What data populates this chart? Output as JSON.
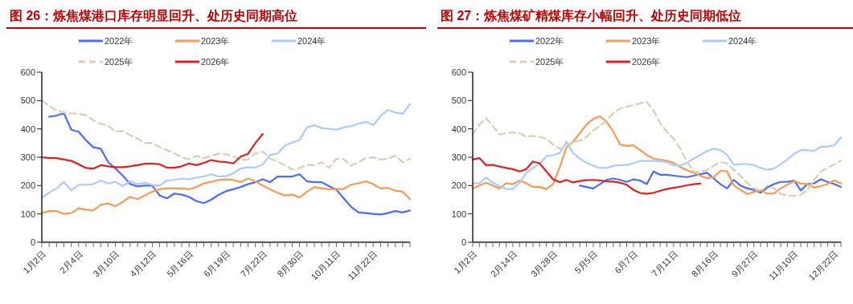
{
  "chart_data": [
    {
      "type": "line",
      "title": "图 26：炼焦煤港口库存明显回升、处历史同期高位",
      "categories": [
        "1月2日",
        null,
        null,
        null,
        null,
        "2月4日",
        null,
        null,
        null,
        null,
        "3月10日",
        null,
        null,
        null,
        null,
        "4月12日",
        null,
        null,
        null,
        null,
        "5月16日",
        null,
        null,
        null,
        null,
        "6月19日",
        null,
        null,
        null,
        null,
        "7月22日",
        null,
        null,
        null,
        null,
        "8月30日",
        null,
        null,
        null,
        null,
        "10月11日",
        null,
        null,
        null,
        null,
        "11月22日",
        null,
        null,
        null,
        null,
        null
      ],
      "series": [
        {
          "name": "2022年",
          "color": "#4a6cf7",
          "values": [
            null,
            443,
            447,
            455,
            397,
            390,
            360,
            335,
            330,
            283,
            260,
            235,
            205,
            197,
            200,
            200,
            165,
            155,
            172,
            168,
            160,
            145,
            138,
            150,
            167,
            180,
            187,
            195,
            205,
            212,
            222,
            212,
            232,
            232,
            232,
            240,
            215,
            212,
            212,
            198,
            185,
            155,
            125,
            105,
            103,
            100,
            98,
            103,
            110,
            105,
            112
          ]
        },
        {
          "name": "2023年",
          "color": "#f79a55",
          "values": [
            103,
            110,
            110,
            100,
            103,
            120,
            115,
            112,
            132,
            137,
            127,
            143,
            160,
            152,
            165,
            178,
            187,
            190,
            190,
            190,
            187,
            195,
            208,
            213,
            220,
            222,
            220,
            212,
            225,
            215,
            200,
            187,
            175,
            165,
            168,
            158,
            178,
            195,
            190,
            187,
            188,
            188,
            203,
            208,
            215,
            205,
            190,
            192,
            182,
            178,
            152
          ]
        },
        {
          "name": "2024年",
          "color": "#a9cbff",
          "values": [
            157,
            175,
            190,
            213,
            183,
            203,
            203,
            205,
            218,
            207,
            213,
            198,
            215,
            205,
            210,
            202,
            200,
            218,
            220,
            225,
            222,
            228,
            232,
            240,
            232,
            233,
            243,
            260,
            265,
            263,
            275,
            308,
            313,
            340,
            352,
            360,
            405,
            413,
            403,
            400,
            397,
            405,
            410,
            418,
            425,
            413,
            445,
            467,
            458,
            453,
            488
          ]
        },
        {
          "name": "2025年",
          "color": "#d9cdb3",
          "line_style": "dashed",
          "values": [
            500,
            482,
            465,
            457,
            455,
            453,
            448,
            430,
            418,
            412,
            390,
            393,
            378,
            365,
            350,
            350,
            335,
            325,
            313,
            300,
            293,
            305,
            297,
            305,
            313,
            310,
            303,
            290,
            292,
            313,
            320,
            295,
            285,
            272,
            257,
            262,
            273,
            272,
            282,
            262,
            295,
            293,
            270,
            282,
            297,
            300,
            292,
            295,
            305,
            282,
            295
          ]
        },
        {
          "name": "2026年",
          "color": "#e02020",
          "values": [
            300,
            297,
            297,
            292,
            287,
            275,
            262,
            260,
            272,
            268,
            265,
            265,
            268,
            272,
            277,
            278,
            275,
            263,
            263,
            268,
            278,
            272,
            280,
            290,
            285,
            283,
            278,
            302,
            312,
            350,
            382,
            null,
            null,
            null,
            null,
            null,
            null,
            null,
            null,
            null,
            null,
            null,
            null,
            null,
            null,
            null,
            null,
            null,
            null,
            null,
            null
          ]
        }
      ],
      "ylim": [
        0,
        600
      ],
      "yticks": [
        0,
        100,
        200,
        300,
        400,
        500,
        600
      ],
      "legend": "top",
      "marker": "none"
    },
    {
      "type": "line",
      "title": "图 27：炼焦煤矿精煤库存小幅回升、处历史同期低位",
      "categories": [
        "1月2日",
        null,
        null,
        null,
        null,
        null,
        "2月14日",
        null,
        null,
        null,
        null,
        null,
        "3月28日",
        null,
        null,
        null,
        null,
        null,
        "5月5日",
        null,
        null,
        null,
        null,
        null,
        "6月7日",
        null,
        null,
        null,
        null,
        null,
        "7月11日",
        null,
        null,
        null,
        null,
        null,
        "8月16日",
        null,
        null,
        null,
        null,
        null,
        "9月27日",
        null,
        null,
        null,
        null,
        null,
        "11月10日",
        null,
        null,
        null,
        null,
        null,
        "12月22日",
        null
      ],
      "series": [
        {
          "name": "2022年",
          "color": "#4a6cf7",
          "values": [
            null,
            null,
            null,
            null,
            null,
            null,
            null,
            null,
            null,
            null,
            null,
            null,
            null,
            null,
            null,
            null,
            200,
            195,
            190,
            205,
            220,
            225,
            220,
            213,
            222,
            218,
            205,
            250,
            238,
            238,
            235,
            232,
            230,
            235,
            240,
            245,
            225,
            205,
            190,
            220,
            200,
            190,
            185,
            175,
            193,
            205,
            213,
            213,
            218,
            183,
            205,
            208,
            222,
            213,
            205,
            195
          ]
        },
        {
          "name": "2023年",
          "color": "#f79a55",
          "values": [
            190,
            200,
            210,
            200,
            190,
            208,
            205,
            218,
            208,
            195,
            195,
            188,
            205,
            265,
            335,
            355,
            385,
            415,
            435,
            445,
            425,
            390,
            345,
            340,
            342,
            325,
            308,
            295,
            291,
            288,
            280,
            265,
            255,
            245,
            235,
            226,
            230,
            252,
            250,
            200,
            185,
            170,
            178,
            183,
            172,
            172,
            190,
            203,
            216,
            207,
            205,
            193,
            198,
            205,
            218,
            207
          ]
        },
        {
          "name": "2024年",
          "color": "#a9cbff",
          "values": [
            208,
            208,
            228,
            210,
            198,
            188,
            188,
            210,
            245,
            262,
            278,
            303,
            307,
            315,
            355,
            315,
            295,
            280,
            270,
            262,
            262,
            270,
            272,
            273,
            278,
            287,
            287,
            287,
            286,
            282,
            272,
            270,
            280,
            295,
            308,
            322,
            330,
            325,
            308,
            273,
            276,
            276,
            272,
            262,
            255,
            260,
            275,
            292,
            312,
            325,
            325,
            322,
            337,
            337,
            342,
            370
          ]
        },
        {
          "name": "2025年",
          "color": "#d9cdb3",
          "line_style": "dashed",
          "values": [
            380,
            415,
            438,
            410,
            380,
            385,
            387,
            385,
            372,
            375,
            372,
            365,
            345,
            330,
            340,
            355,
            358,
            372,
            395,
            410,
            430,
            455,
            472,
            478,
            483,
            490,
            495,
            465,
            420,
            390,
            365,
            330,
            285,
            248,
            248,
            255,
            270,
            283,
            278,
            255,
            235,
            210,
            190,
            180,
            200,
            190,
            170,
            165,
            163,
            168,
            185,
            220,
            250,
            262,
            275,
            287
          ]
        },
        {
          "name": "2026年",
          "color": "#e02020",
          "values": [
            292,
            297,
            272,
            273,
            267,
            262,
            258,
            250,
            258,
            285,
            278,
            250,
            222,
            212,
            220,
            211,
            216,
            219,
            220,
            218,
            215,
            214,
            210,
            203,
            185,
            174,
            171,
            174,
            182,
            188,
            192,
            196,
            201,
            205,
            207,
            null,
            null,
            null,
            null,
            null,
            null,
            null,
            null,
            null,
            null,
            null,
            null,
            null,
            null,
            null,
            null,
            null,
            null,
            null,
            null,
            null
          ]
        }
      ],
      "ylim": [
        0,
        600
      ],
      "yticks": [
        0,
        100,
        200,
        300,
        400,
        500,
        600
      ],
      "legend": "top",
      "marker": "none"
    }
  ]
}
